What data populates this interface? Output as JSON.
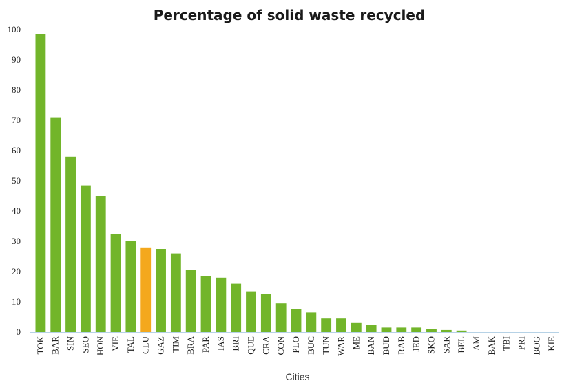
{
  "chart_data": {
    "type": "bar",
    "title": "Percentage of solid waste recycled",
    "xlabel": "Cities",
    "ylabel": "",
    "ylim": [
      0,
      100
    ],
    "yticks": [
      0,
      10,
      20,
      30,
      40,
      50,
      60,
      70,
      80,
      90,
      100
    ],
    "grid": false,
    "categories": [
      "TOK",
      "BAR",
      "SIN",
      "SEO",
      "HON",
      "VIE",
      "TAL",
      "CLU",
      "GAZ",
      "TIM",
      "BRA",
      "PAR",
      "IAS",
      "BRI",
      "QUE",
      "CRA",
      "CON",
      "PLO",
      "BUC",
      "TUN",
      "WAR",
      "ME",
      "BAN",
      "BUD",
      "RAB",
      "JED",
      "SKO",
      "SAR",
      "BEL",
      "AM",
      "BAK",
      "TBI",
      "PRI",
      "BOG",
      "KIE"
    ],
    "values": [
      98.5,
      71,
      58,
      48.5,
      45,
      32.5,
      30,
      28,
      27.5,
      26,
      20.5,
      18.5,
      18,
      16,
      13.5,
      12.5,
      9.5,
      7.5,
      6.5,
      4.5,
      4.5,
      3,
      2.5,
      1.5,
      1.5,
      1.5,
      1,
      0.7,
      0.5,
      0,
      0,
      0,
      0,
      0,
      0
    ],
    "highlight_category": "CLU",
    "colors": {
      "bar": "#72b52a",
      "highlight": "#f4a81d",
      "axis": "#9ec3dd"
    }
  }
}
